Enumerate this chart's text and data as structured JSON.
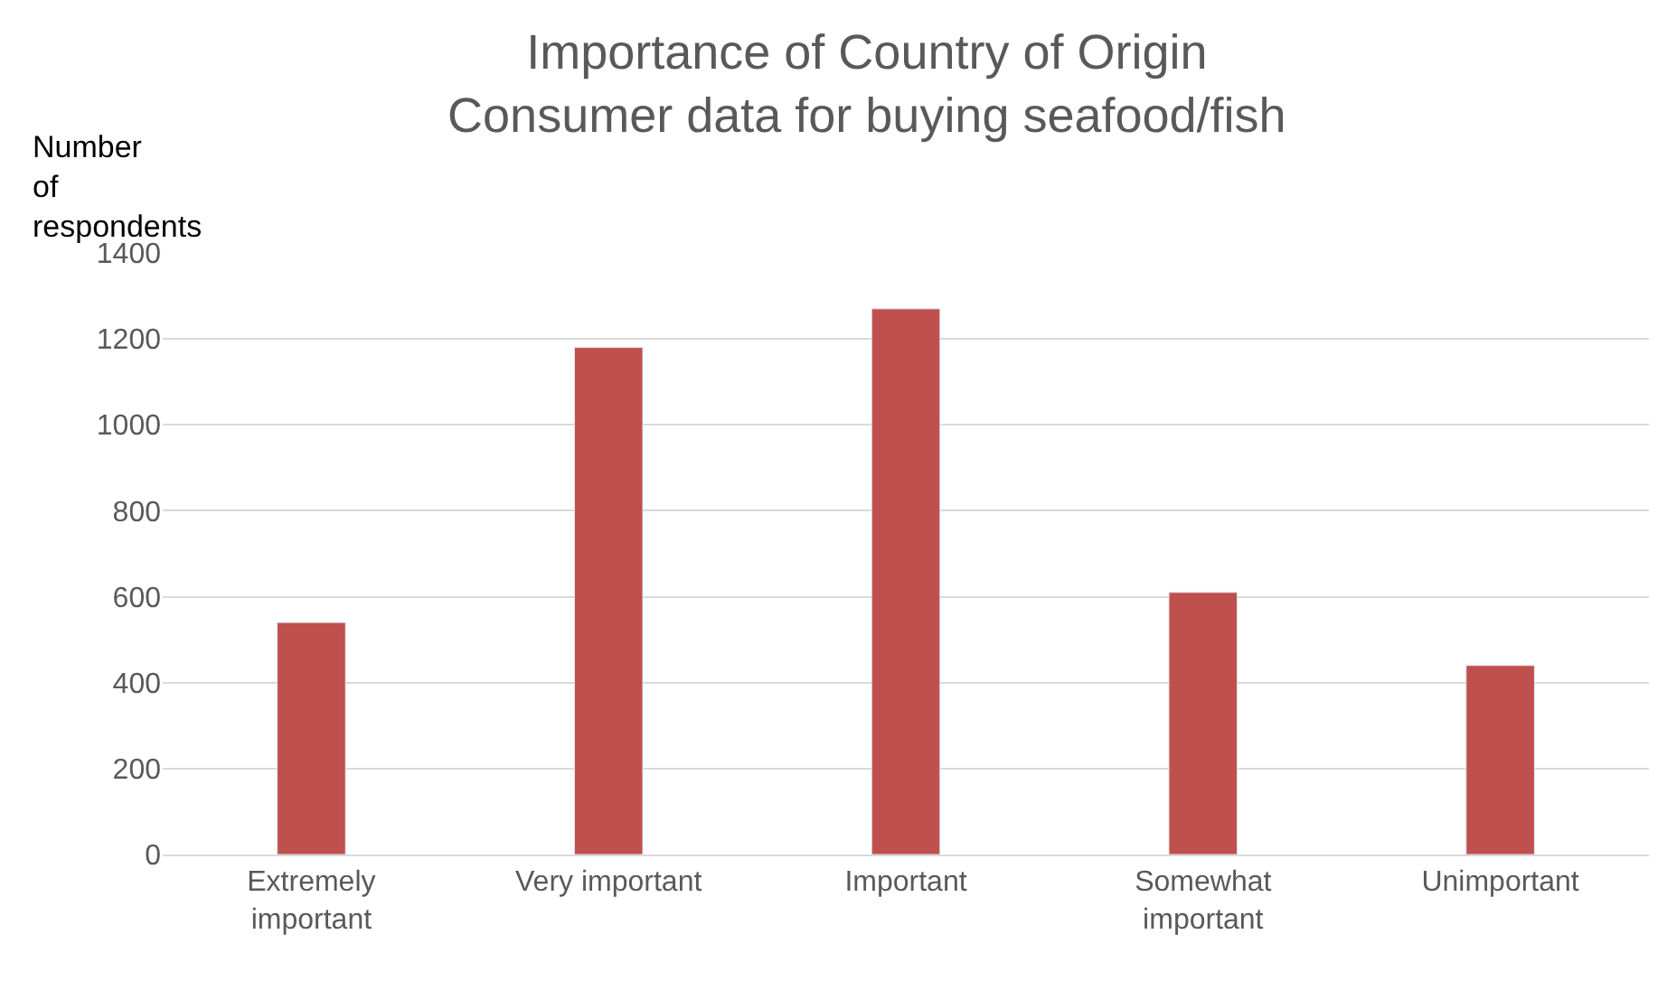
{
  "chart_data": {
    "type": "bar",
    "title": "Importance of Country of Origin\nConsumer data for buying seafood/fish",
    "ylabel": "Number\nof\nrespondents",
    "categories": [
      "Extremely\nimportant",
      "Very important",
      "Important",
      "Somewhat\nimportant",
      "Unimportant"
    ],
    "values": [
      540,
      1180,
      1270,
      610,
      440
    ],
    "color": "#c0504d",
    "ylim": [
      0,
      1400
    ],
    "yticks": [
      0,
      200,
      400,
      600,
      800,
      1000,
      1200,
      1400
    ],
    "grid": "y"
  }
}
